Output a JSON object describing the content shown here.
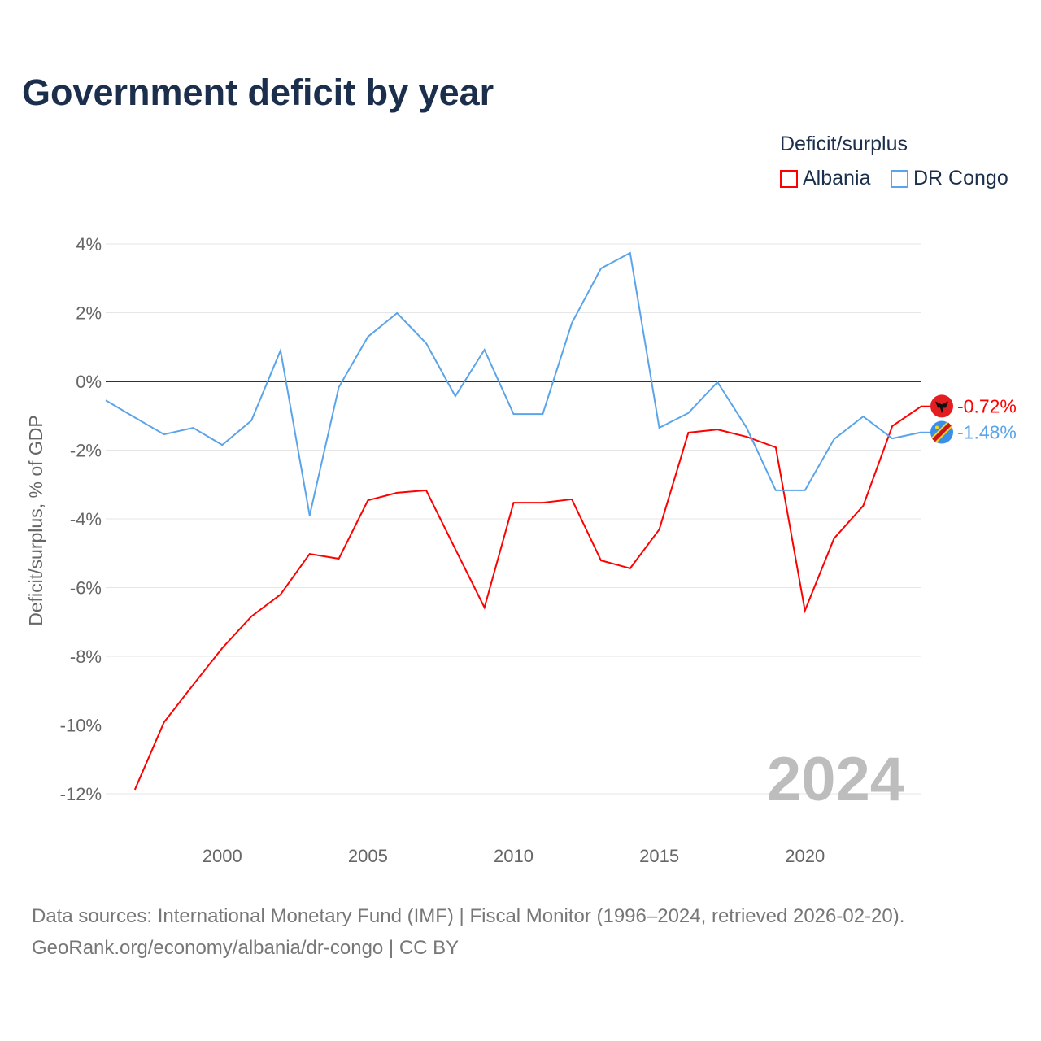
{
  "chart_data": {
    "type": "line",
    "title": "Government deficit by year",
    "ylabel": "Deficit/surplus, % of GDP",
    "xlabel": "",
    "legend_title": "Deficit/surplus",
    "legend_position": "top-right",
    "ylim": [
      -12,
      4
    ],
    "xlim": [
      1996,
      2024
    ],
    "yticks": [
      4,
      2,
      0,
      -2,
      -4,
      -6,
      -8,
      -10,
      -12
    ],
    "ytick_labels": [
      "4%",
      "2%",
      "0%",
      "-2%",
      "-4%",
      "-6%",
      "-8%",
      "-10%",
      "-12%"
    ],
    "xticks": [
      2000,
      2005,
      2010,
      2015,
      2020
    ],
    "xtick_labels": [
      "2000",
      "2005",
      "2010",
      "2015",
      "2020"
    ],
    "grid": true,
    "year_watermark": "2024",
    "series": [
      {
        "name": "Albania",
        "color": "#ff0000",
        "end_label": "-0.72%",
        "x": [
          1997,
          1998,
          1999,
          2000,
          2001,
          2002,
          2003,
          2004,
          2005,
          2006,
          2007,
          2008,
          2009,
          2010,
          2011,
          2012,
          2013,
          2014,
          2015,
          2016,
          2017,
          2018,
          2019,
          2020,
          2021,
          2022,
          2023,
          2024
        ],
        "values": [
          -11.88,
          -9.92,
          -8.83,
          -7.76,
          -6.84,
          -6.2,
          -5.02,
          -5.16,
          -3.46,
          -3.24,
          -3.17,
          -4.88,
          -6.58,
          -3.53,
          -3.53,
          -3.43,
          -5.21,
          -5.44,
          -4.31,
          -1.49,
          -1.4,
          -1.61,
          -1.92,
          -6.67,
          -4.57,
          -3.62,
          -1.3,
          -0.72
        ]
      },
      {
        "name": "DR Congo",
        "color": "#5ba4ea",
        "end_label": "-1.48%",
        "x": [
          1996,
          1997,
          1998,
          1999,
          2000,
          2001,
          2002,
          2003,
          2004,
          2005,
          2006,
          2007,
          2008,
          2009,
          2010,
          2011,
          2012,
          2013,
          2014,
          2015,
          2016,
          2017,
          2018,
          2019,
          2020,
          2021,
          2022,
          2023,
          2024
        ],
        "values": [
          -0.55,
          -1.05,
          -1.54,
          -1.35,
          -1.85,
          -1.14,
          0.9,
          -3.9,
          -0.17,
          1.3,
          1.99,
          1.11,
          -0.43,
          0.92,
          -0.95,
          -0.95,
          1.7,
          3.29,
          3.74,
          -1.35,
          -0.92,
          -0.02,
          -1.35,
          -3.17,
          -3.17,
          -1.68,
          -1.02,
          -1.66,
          -1.48
        ]
      }
    ]
  },
  "source": {
    "line1": "Data sources: International Monetary Fund (IMF) | Fiscal Monitor (1996–2024, retrieved 2026-02-20).",
    "line2": "GeoRank.org/economy/albania/dr-congo | CC BY"
  }
}
